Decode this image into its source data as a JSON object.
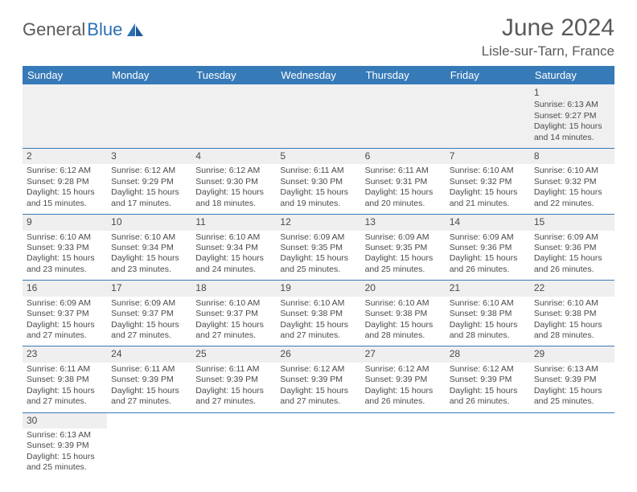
{
  "logo": {
    "text1": "General",
    "text2": "Blue"
  },
  "title": "June 2024",
  "location": "Lisle-sur-Tarn, France",
  "colors": {
    "header_bg": "#377ab8",
    "header_text": "#ffffff",
    "daynum_bg": "#efefef",
    "border": "#377ab8",
    "text": "#4a4a4a",
    "logo_gray": "#5a5a5a",
    "logo_blue": "#2d6fb5"
  },
  "weekdays": [
    "Sunday",
    "Monday",
    "Tuesday",
    "Wednesday",
    "Thursday",
    "Friday",
    "Saturday"
  ],
  "weeks": [
    [
      null,
      null,
      null,
      null,
      null,
      null,
      {
        "n": "1",
        "sr": "Sunrise: 6:13 AM",
        "ss": "Sunset: 9:27 PM",
        "dl": "Daylight: 15 hours and 14 minutes."
      }
    ],
    [
      {
        "n": "2",
        "sr": "Sunrise: 6:12 AM",
        "ss": "Sunset: 9:28 PM",
        "dl": "Daylight: 15 hours and 15 minutes."
      },
      {
        "n": "3",
        "sr": "Sunrise: 6:12 AM",
        "ss": "Sunset: 9:29 PM",
        "dl": "Daylight: 15 hours and 17 minutes."
      },
      {
        "n": "4",
        "sr": "Sunrise: 6:12 AM",
        "ss": "Sunset: 9:30 PM",
        "dl": "Daylight: 15 hours and 18 minutes."
      },
      {
        "n": "5",
        "sr": "Sunrise: 6:11 AM",
        "ss": "Sunset: 9:30 PM",
        "dl": "Daylight: 15 hours and 19 minutes."
      },
      {
        "n": "6",
        "sr": "Sunrise: 6:11 AM",
        "ss": "Sunset: 9:31 PM",
        "dl": "Daylight: 15 hours and 20 minutes."
      },
      {
        "n": "7",
        "sr": "Sunrise: 6:10 AM",
        "ss": "Sunset: 9:32 PM",
        "dl": "Daylight: 15 hours and 21 minutes."
      },
      {
        "n": "8",
        "sr": "Sunrise: 6:10 AM",
        "ss": "Sunset: 9:32 PM",
        "dl": "Daylight: 15 hours and 22 minutes."
      }
    ],
    [
      {
        "n": "9",
        "sr": "Sunrise: 6:10 AM",
        "ss": "Sunset: 9:33 PM",
        "dl": "Daylight: 15 hours and 23 minutes."
      },
      {
        "n": "10",
        "sr": "Sunrise: 6:10 AM",
        "ss": "Sunset: 9:34 PM",
        "dl": "Daylight: 15 hours and 23 minutes."
      },
      {
        "n": "11",
        "sr": "Sunrise: 6:10 AM",
        "ss": "Sunset: 9:34 PM",
        "dl": "Daylight: 15 hours and 24 minutes."
      },
      {
        "n": "12",
        "sr": "Sunrise: 6:09 AM",
        "ss": "Sunset: 9:35 PM",
        "dl": "Daylight: 15 hours and 25 minutes."
      },
      {
        "n": "13",
        "sr": "Sunrise: 6:09 AM",
        "ss": "Sunset: 9:35 PM",
        "dl": "Daylight: 15 hours and 25 minutes."
      },
      {
        "n": "14",
        "sr": "Sunrise: 6:09 AM",
        "ss": "Sunset: 9:36 PM",
        "dl": "Daylight: 15 hours and 26 minutes."
      },
      {
        "n": "15",
        "sr": "Sunrise: 6:09 AM",
        "ss": "Sunset: 9:36 PM",
        "dl": "Daylight: 15 hours and 26 minutes."
      }
    ],
    [
      {
        "n": "16",
        "sr": "Sunrise: 6:09 AM",
        "ss": "Sunset: 9:37 PM",
        "dl": "Daylight: 15 hours and 27 minutes."
      },
      {
        "n": "17",
        "sr": "Sunrise: 6:09 AM",
        "ss": "Sunset: 9:37 PM",
        "dl": "Daylight: 15 hours and 27 minutes."
      },
      {
        "n": "18",
        "sr": "Sunrise: 6:10 AM",
        "ss": "Sunset: 9:37 PM",
        "dl": "Daylight: 15 hours and 27 minutes."
      },
      {
        "n": "19",
        "sr": "Sunrise: 6:10 AM",
        "ss": "Sunset: 9:38 PM",
        "dl": "Daylight: 15 hours and 27 minutes."
      },
      {
        "n": "20",
        "sr": "Sunrise: 6:10 AM",
        "ss": "Sunset: 9:38 PM",
        "dl": "Daylight: 15 hours and 28 minutes."
      },
      {
        "n": "21",
        "sr": "Sunrise: 6:10 AM",
        "ss": "Sunset: 9:38 PM",
        "dl": "Daylight: 15 hours and 28 minutes."
      },
      {
        "n": "22",
        "sr": "Sunrise: 6:10 AM",
        "ss": "Sunset: 9:38 PM",
        "dl": "Daylight: 15 hours and 28 minutes."
      }
    ],
    [
      {
        "n": "23",
        "sr": "Sunrise: 6:11 AM",
        "ss": "Sunset: 9:38 PM",
        "dl": "Daylight: 15 hours and 27 minutes."
      },
      {
        "n": "24",
        "sr": "Sunrise: 6:11 AM",
        "ss": "Sunset: 9:39 PM",
        "dl": "Daylight: 15 hours and 27 minutes."
      },
      {
        "n": "25",
        "sr": "Sunrise: 6:11 AM",
        "ss": "Sunset: 9:39 PM",
        "dl": "Daylight: 15 hours and 27 minutes."
      },
      {
        "n": "26",
        "sr": "Sunrise: 6:12 AM",
        "ss": "Sunset: 9:39 PM",
        "dl": "Daylight: 15 hours and 27 minutes."
      },
      {
        "n": "27",
        "sr": "Sunrise: 6:12 AM",
        "ss": "Sunset: 9:39 PM",
        "dl": "Daylight: 15 hours and 26 minutes."
      },
      {
        "n": "28",
        "sr": "Sunrise: 6:12 AM",
        "ss": "Sunset: 9:39 PM",
        "dl": "Daylight: 15 hours and 26 minutes."
      },
      {
        "n": "29",
        "sr": "Sunrise: 6:13 AM",
        "ss": "Sunset: 9:39 PM",
        "dl": "Daylight: 15 hours and 25 minutes."
      }
    ],
    [
      {
        "n": "30",
        "sr": "Sunrise: 6:13 AM",
        "ss": "Sunset: 9:39 PM",
        "dl": "Daylight: 15 hours and 25 minutes."
      },
      null,
      null,
      null,
      null,
      null,
      null
    ]
  ]
}
